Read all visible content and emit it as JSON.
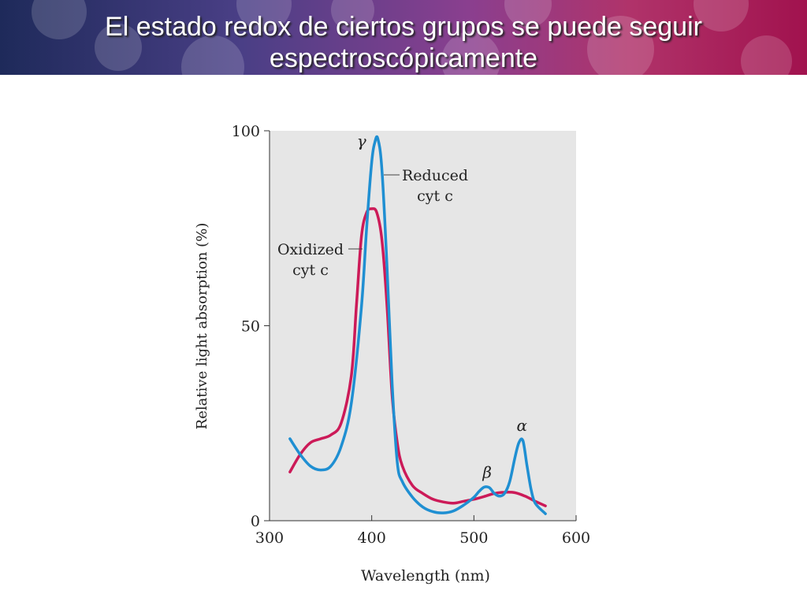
{
  "slide": {
    "title_line1": "El estado redox de ciertos grupos se puede seguir",
    "title_line2": "espectroscópicamente"
  },
  "colors": {
    "reduced": "#1f8fd2",
    "oxidized": "#cc1a58",
    "plot_background": "#e6e6e6"
  },
  "chart_data": {
    "type": "line",
    "title": "",
    "xlabel": "Wavelength (nm)",
    "ylabel": "Relative light absorption (%)",
    "xlim": [
      300,
      600
    ],
    "ylim": [
      0,
      100
    ],
    "xticks": [
      "300",
      "400",
      "500",
      "600"
    ],
    "yticks": [
      "0",
      "50",
      "100"
    ],
    "grid": false,
    "series": [
      {
        "name": "Reduced cyt c",
        "color": "#1f8fd2",
        "x": [
          320,
          330,
          340,
          350,
          360,
          370,
          380,
          390,
          395,
          400,
          403,
          406,
          410,
          415,
          420,
          425,
          430,
          440,
          450,
          460,
          470,
          480,
          490,
          500,
          505,
          510,
          515,
          520,
          525,
          530,
          535,
          540,
          544,
          548,
          552,
          556,
          560,
          570
        ],
        "y": [
          21,
          17,
          14,
          13,
          14,
          19,
          30,
          55,
          75,
          92,
          97,
          98,
          90,
          65,
          35,
          15,
          10,
          6,
          3.5,
          2.3,
          2.0,
          2.5,
          4,
          6,
          7.5,
          8.6,
          8.5,
          7,
          6.3,
          7,
          10,
          16,
          20,
          20.5,
          14,
          8,
          4.5,
          1.8
        ]
      },
      {
        "name": "Oxidized cyt c",
        "color": "#cc1a58",
        "x": [
          320,
          330,
          340,
          350,
          360,
          370,
          380,
          385,
          390,
          395,
          400,
          405,
          410,
          415,
          420,
          425,
          430,
          440,
          450,
          460,
          470,
          480,
          490,
          500,
          510,
          520,
          530,
          540,
          550,
          560,
          570
        ],
        "y": [
          12.5,
          17,
          20,
          21,
          22,
          25,
          37,
          55,
          73,
          79,
          80,
          79,
          72,
          55,
          32,
          20,
          14,
          9,
          7,
          5.5,
          4.8,
          4.5,
          5,
          5.5,
          6.2,
          7,
          7.3,
          7.2,
          6.3,
          5,
          3.8
        ]
      }
    ],
    "annotations": [
      {
        "text": "γ",
        "x": 390,
        "y": 96
      },
      {
        "text": "β",
        "x": 513,
        "y": 11
      },
      {
        "text": "α",
        "x": 547,
        "y": 23
      }
    ],
    "legend": [
      {
        "line1": "Reduced",
        "line2": "cyt c"
      },
      {
        "line1": "Oxidized",
        "line2": "cyt c"
      }
    ]
  }
}
